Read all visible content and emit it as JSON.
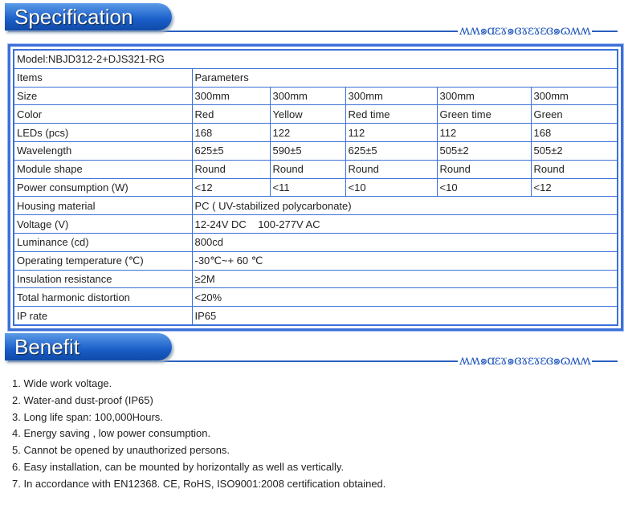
{
  "spec": {
    "title": "Specification",
    "model": "Model:NBJD312-2+DJS321-RG",
    "items_label": "Items",
    "params_label": "Parameters",
    "multi_rows": [
      {
        "label": "Size",
        "values": [
          "300mm",
          "300mm",
          "300mm",
          "300mm",
          "300mm"
        ]
      },
      {
        "label": "Color",
        "values": [
          "Red",
          "Yellow",
          "Red time",
          "Green time",
          "Green"
        ]
      },
      {
        "label": "LEDs (pcs)",
        "values": [
          "168",
          "122",
          "112",
          "112",
          "168"
        ]
      },
      {
        "label": "Wavelength",
        "values": [
          "625±5",
          "590±5",
          "625±5",
          "505±2",
          "505±2"
        ]
      },
      {
        "label": "Module shape",
        "values": [
          "Round",
          "Round",
          "Round",
          "Round",
          "Round"
        ]
      },
      {
        "label": "Power consumption (W)",
        "values": [
          "<12",
          "<11",
          "<10",
          "<10",
          "<12"
        ]
      }
    ],
    "single_rows": [
      {
        "label": "Housing material",
        "value": "PC ( UV-stabilized polycarbonate)"
      },
      {
        "label": "Voltage (V)",
        "value": "12-24V DC    100-277V AC"
      },
      {
        "label": "Luminance (cd)",
        "value": "800cd"
      },
      {
        "label": "Operating temperature (℃)",
        "value": "-30℃~+ 60 ℃"
      },
      {
        "label": "Insulation resistance",
        "value": "≥2M"
      },
      {
        "label": "Total harmonic distortion",
        "value": "<20%"
      },
      {
        "label": "IP rate",
        "value": "IP65"
      }
    ]
  },
  "benefit": {
    "title": "Benefit",
    "items": [
      "1. Wide work voltage.",
      "2. Water-and dust-proof (IP65)",
      "3. Long life span: 100,000Hours.",
      "4. Energy saving , low power consumption.",
      "5. Cannot be opened by unauthorized persons.",
      "6. Easy installation, can be mounted by horizontally as well as vertically.",
      "7. In accordance with EN12368. CE, RoHS, ISO9001:2008 certification obtained."
    ]
  },
  "ornament": "ʍʍ๑ɑɛɤ๑ɞɤɛɤɛɞ๑ɷʍʍ"
}
